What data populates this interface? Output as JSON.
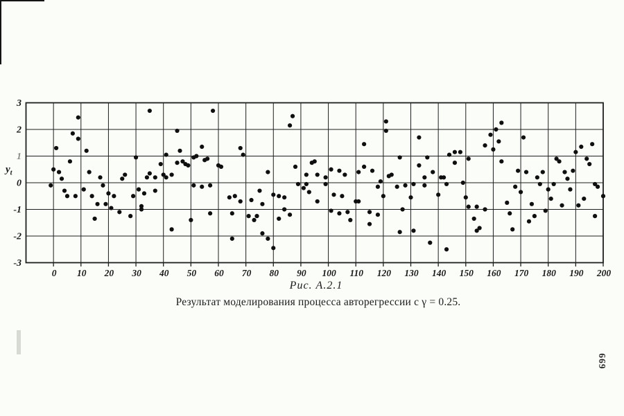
{
  "page": {
    "page_number": "669"
  },
  "figure": {
    "label": "Рис. А.2.1",
    "caption": "Результат моделирования процесса авторегрессии с γ = 0.25."
  },
  "chart_data": {
    "type": "scatter",
    "title": "",
    "xlabel": "",
    "ylabel_main": "y",
    "ylabel_sub": "t",
    "xlim": [
      -10,
      200
    ],
    "ylim": [
      -3,
      3
    ],
    "x_grid_step": 10,
    "grid": true,
    "legend": "none",
    "x_ticks": [
      0,
      10,
      20,
      30,
      40,
      50,
      60,
      70,
      80,
      90,
      100,
      110,
      120,
      130,
      140,
      150,
      160,
      170,
      180,
      190,
      200
    ],
    "y_ticks": [
      3,
      2,
      1,
      0,
      -1,
      -2,
      -3
    ],
    "faint_y_ticks": [
      1
    ],
    "marker_color": "#0f0f0f",
    "line_color": "#1e1e1e",
    "points": [
      [
        -1,
        -0.1
      ],
      [
        0,
        0.5
      ],
      [
        1,
        1.3
      ],
      [
        2,
        0.4
      ],
      [
        3,
        0.15
      ],
      [
        4,
        -0.3
      ],
      [
        5,
        -0.5
      ],
      [
        6,
        0.8
      ],
      [
        7,
        1.85
      ],
      [
        8,
        -0.5
      ],
      [
        9,
        1.65
      ],
      [
        9,
        2.45
      ],
      [
        11,
        -0.25
      ],
      [
        12,
        1.2
      ],
      [
        13,
        0.4
      ],
      [
        14,
        -0.5
      ],
      [
        15,
        -1.35
      ],
      [
        16,
        -0.8
      ],
      [
        17,
        0.2
      ],
      [
        18,
        -0.1
      ],
      [
        19,
        -0.8
      ],
      [
        20,
        -0.4
      ],
      [
        21,
        -0.95
      ],
      [
        22,
        -0.5
      ],
      [
        24,
        -1.1
      ],
      [
        25,
        0.15
      ],
      [
        26,
        0.3
      ],
      [
        28,
        -1.25
      ],
      [
        29,
        -0.5
      ],
      [
        30,
        0.95
      ],
      [
        31,
        -0.25
      ],
      [
        32,
        -0.88
      ],
      [
        32,
        -1.0
      ],
      [
        33,
        -0.4
      ],
      [
        34,
        0.2
      ],
      [
        35,
        0.35
      ],
      [
        35,
        2.7
      ],
      [
        37,
        0.2
      ],
      [
        37,
        -0.3
      ],
      [
        39,
        0.7
      ],
      [
        40,
        0.3
      ],
      [
        41,
        1.05
      ],
      [
        41,
        0.2
      ],
      [
        43,
        0.3
      ],
      [
        43,
        -1.75
      ],
      [
        45,
        1.95
      ],
      [
        45,
        0.75
      ],
      [
        46,
        1.2
      ],
      [
        47,
        0.8
      ],
      [
        48,
        0.7
      ],
      [
        49,
        0.65
      ],
      [
        50,
        -1.4
      ],
      [
        51,
        -0.1
      ],
      [
        51,
        0.95
      ],
      [
        52,
        1.0
      ],
      [
        54,
        1.35
      ],
      [
        54,
        -0.15
      ],
      [
        55,
        0.85
      ],
      [
        56,
        0.9
      ],
      [
        57,
        -1.15
      ],
      [
        57,
        -0.1
      ],
      [
        58,
        2.7
      ],
      [
        60,
        0.65
      ],
      [
        61,
        0.6
      ],
      [
        64,
        -0.55
      ],
      [
        65,
        -1.15
      ],
      [
        65,
        -2.1
      ],
      [
        66,
        -0.5
      ],
      [
        68,
        -0.7
      ],
      [
        68,
        1.3
      ],
      [
        69,
        1.05
      ],
      [
        71,
        -1.25
      ],
      [
        72,
        -0.65
      ],
      [
        73,
        -1.4
      ],
      [
        74,
        -1.25
      ],
      [
        75,
        -0.3
      ],
      [
        76,
        -1.9
      ],
      [
        76,
        -0.8
      ],
      [
        78,
        -2.1
      ],
      [
        78,
        0.4
      ],
      [
        80,
        -2.45
      ],
      [
        80,
        -0.45
      ],
      [
        82,
        -0.5
      ],
      [
        82,
        -1.35
      ],
      [
        84,
        -1.0
      ],
      [
        84,
        -0.55
      ],
      [
        86,
        -1.2
      ],
      [
        86,
        2.15
      ],
      [
        87,
        2.5
      ],
      [
        88,
        0.6
      ],
      [
        89,
        -0.05
      ],
      [
        91,
        -0.2
      ],
      [
        92,
        0.3
      ],
      [
        92,
        -0.05
      ],
      [
        93,
        -0.35
      ],
      [
        94,
        0.75
      ],
      [
        95,
        0.8
      ],
      [
        96,
        0.3
      ],
      [
        96,
        -0.7
      ],
      [
        99,
        -0.05
      ],
      [
        99,
        0.2
      ],
      [
        101,
        0.5
      ],
      [
        101,
        -1.05
      ],
      [
        102,
        -0.45
      ],
      [
        104,
        -1.15
      ],
      [
        104,
        0.45
      ],
      [
        105,
        -0.5
      ],
      [
        106,
        0.3
      ],
      [
        107,
        -1.1
      ],
      [
        108,
        -1.4
      ],
      [
        110,
        -0.7
      ],
      [
        111,
        0.4
      ],
      [
        111,
        -0.7
      ],
      [
        113,
        0.6
      ],
      [
        113,
        1.45
      ],
      [
        115,
        -1.1
      ],
      [
        115,
        -1.55
      ],
      [
        116,
        0.45
      ],
      [
        118,
        -0.15
      ],
      [
        118,
        -1.2
      ],
      [
        119,
        0.05
      ],
      [
        120,
        -0.5
      ],
      [
        121,
        2.3
      ],
      [
        121,
        1.95
      ],
      [
        122,
        0.25
      ],
      [
        123,
        0.3
      ],
      [
        125,
        -0.15
      ],
      [
        126,
        -1.85
      ],
      [
        126,
        0.95
      ],
      [
        127,
        -1.0
      ],
      [
        128,
        -0.1
      ],
      [
        130,
        -0.55
      ],
      [
        131,
        -0.05
      ],
      [
        131,
        -1.8
      ],
      [
        133,
        1.7
      ],
      [
        133,
        0.65
      ],
      [
        135,
        0.2
      ],
      [
        135,
        -0.1
      ],
      [
        136,
        0.95
      ],
      [
        137,
        -2.25
      ],
      [
        138,
        0.4
      ],
      [
        140,
        -0.45
      ],
      [
        141,
        0.2
      ],
      [
        142,
        0.2
      ],
      [
        143,
        -0.05
      ],
      [
        143,
        -2.5
      ],
      [
        144,
        1.05
      ],
      [
        146,
        1.15
      ],
      [
        146,
        0.75
      ],
      [
        148,
        1.15
      ],
      [
        149,
        0.0
      ],
      [
        150,
        -0.55
      ],
      [
        151,
        0.9
      ],
      [
        151,
        -0.9
      ],
      [
        153,
        -1.35
      ],
      [
        154,
        -0.9
      ],
      [
        154,
        -1.8
      ],
      [
        155,
        -1.7
      ],
      [
        157,
        -1.0
      ],
      [
        157,
        1.4
      ],
      [
        159,
        1.8
      ],
      [
        160,
        1.25
      ],
      [
        161,
        2.0
      ],
      [
        162,
        1.55
      ],
      [
        163,
        2.25
      ],
      [
        163,
        0.8
      ],
      [
        165,
        -0.75
      ],
      [
        166,
        -1.15
      ],
      [
        167,
        -1.75
      ],
      [
        168,
        -0.15
      ],
      [
        169,
        0.45
      ],
      [
        170,
        -0.35
      ],
      [
        171,
        1.7
      ],
      [
        172,
        0.4
      ],
      [
        173,
        -1.45
      ],
      [
        174,
        -0.8
      ],
      [
        175,
        -1.25
      ],
      [
        176,
        0.2
      ],
      [
        177,
        -0.05
      ],
      [
        178,
        0.4
      ],
      [
        179,
        -1.05
      ],
      [
        180,
        -0.25
      ],
      [
        181,
        -0.6
      ],
      [
        182,
        -0.05
      ],
      [
        183,
        0.9
      ],
      [
        184,
        0.8
      ],
      [
        185,
        -0.85
      ],
      [
        186,
        0.4
      ],
      [
        187,
        0.15
      ],
      [
        188,
        -0.25
      ],
      [
        189,
        0.45
      ],
      [
        190,
        1.15
      ],
      [
        191,
        -0.85
      ],
      [
        192,
        1.35
      ],
      [
        193,
        -0.6
      ],
      [
        194,
        0.9
      ],
      [
        195,
        0.7
      ],
      [
        196,
        1.45
      ],
      [
        197,
        -0.05
      ],
      [
        197,
        -1.25
      ],
      [
        198,
        -0.15
      ],
      [
        200,
        -0.5
      ]
    ]
  }
}
